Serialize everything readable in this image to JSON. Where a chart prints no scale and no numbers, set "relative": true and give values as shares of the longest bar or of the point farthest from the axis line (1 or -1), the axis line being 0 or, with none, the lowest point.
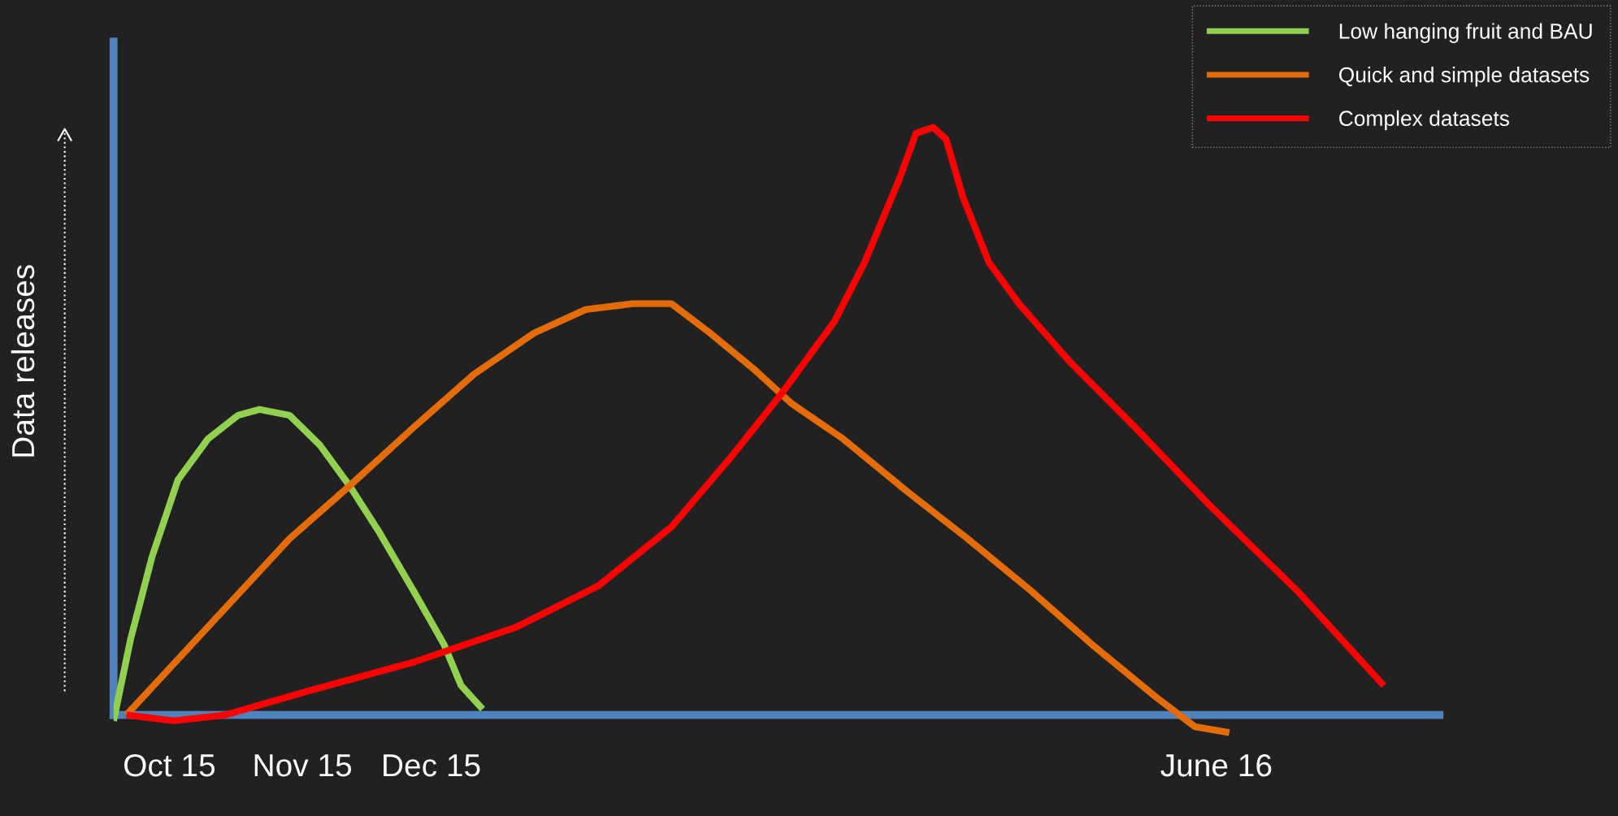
{
  "chart_data": {
    "type": "line",
    "relative": true,
    "ylabel": "Data releases",
    "xlim": [
      "2015-09-18",
      "2016-07-23"
    ],
    "xticks": [
      {
        "value": "2015-10",
        "label": "Oct 15"
      },
      {
        "value": "2015-11",
        "label": "Nov 15"
      },
      {
        "value": "2015-12",
        "label": "Dec 15"
      },
      {
        "value": "2016-06",
        "label": "June 16"
      }
    ],
    "legend": "top right",
    "grid": false,
    "marker": "none",
    "line_style": "solid",
    "series": [
      {
        "name": "Low hanging fruit and BAU",
        "color": "#92d050",
        "x": [
          "2015-09-18",
          "2015-09-22",
          "2015-09-27",
          "2015-10-03",
          "2015-10-10",
          "2015-10-17",
          "2015-10-22",
          "2015-10-29",
          "2015-11-05",
          "2015-11-12",
          "2015-11-19",
          "2015-11-27",
          "2015-12-04",
          "2015-12-08",
          "2015-12-13"
        ],
        "values": [
          -0.01,
          0.13,
          0.27,
          0.4,
          0.47,
          0.51,
          0.52,
          0.51,
          0.46,
          0.39,
          0.31,
          0.21,
          0.12,
          0.05,
          0.01
        ]
      },
      {
        "name": "Quick and simple datasets",
        "color": "#e36c09",
        "x": [
          "2015-09-21",
          "2015-10-10",
          "2015-10-29",
          "2015-11-12",
          "2015-11-27",
          "2015-12-11",
          "2015-12-25",
          "2016-01-06",
          "2016-01-17",
          "2016-01-26",
          "2016-02-04",
          "2016-02-14",
          "2016-02-23",
          "2016-03-06",
          "2016-03-21",
          "2016-04-04",
          "2016-04-19",
          "2016-05-03",
          "2016-05-18",
          "2016-05-27",
          "2016-06-04"
        ],
        "values": [
          0.0,
          0.15,
          0.3,
          0.39,
          0.49,
          0.58,
          0.65,
          0.69,
          0.7,
          0.7,
          0.65,
          0.59,
          0.53,
          0.47,
          0.38,
          0.3,
          0.21,
          0.12,
          0.03,
          -0.02,
          -0.03
        ]
      },
      {
        "name": "Complex datasets",
        "color": "#ff0000",
        "x": [
          "2015-09-21",
          "2015-10-02",
          "2015-10-14",
          "2015-11-02",
          "2015-11-27",
          "2015-12-21",
          "2016-01-09",
          "2016-01-26",
          "2016-02-09",
          "2016-02-21",
          "2016-03-04",
          "2016-03-11",
          "2016-03-19",
          "2016-03-23",
          "2016-03-27",
          "2016-03-30",
          "2016-04-03",
          "2016-04-09",
          "2016-04-16",
          "2016-04-28",
          "2016-05-13",
          "2016-05-30",
          "2016-06-20",
          "2016-07-10"
        ],
        "values": [
          0.0,
          -0.01,
          0.0,
          0.04,
          0.09,
          0.15,
          0.22,
          0.32,
          0.44,
          0.55,
          0.67,
          0.77,
          0.91,
          0.99,
          1.0,
          0.98,
          0.88,
          0.77,
          0.7,
          0.6,
          0.49,
          0.36,
          0.21,
          0.05
        ]
      }
    ]
  }
}
